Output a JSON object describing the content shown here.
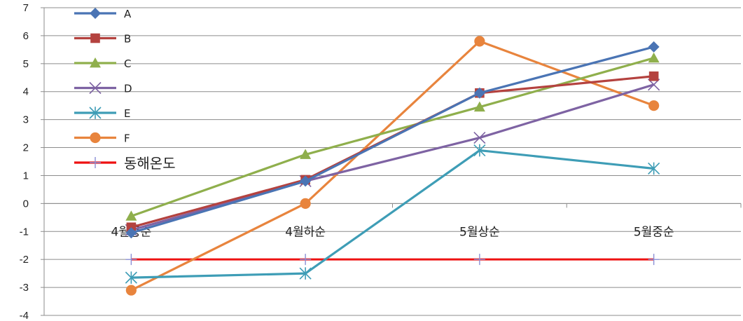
{
  "chart_data": {
    "type": "line",
    "categories": [
      "4월중순",
      "4월하순",
      "5월상순",
      "5월중순"
    ],
    "ylim": [
      -4,
      7
    ],
    "yticks": [
      -4,
      -3,
      -2,
      -1,
      0,
      1,
      2,
      3,
      4,
      5,
      6,
      7
    ],
    "grid": true,
    "legend_position": "top-left",
    "series": [
      {
        "name": "A",
        "values": [
          -1.05,
          0.8,
          3.95,
          5.6
        ],
        "color": "#4a74b4",
        "marker": "diamond"
      },
      {
        "name": "B",
        "values": [
          -0.85,
          0.85,
          3.95,
          4.55
        ],
        "color": "#b4423f",
        "marker": "square"
      },
      {
        "name": "C",
        "values": [
          -0.45,
          1.75,
          3.45,
          5.2
        ],
        "color": "#8faf4c",
        "marker": "triangle"
      },
      {
        "name": "D",
        "values": [
          -0.95,
          0.8,
          2.35,
          4.25
        ],
        "color": "#7e63a3",
        "marker": "x"
      },
      {
        "name": "E",
        "values": [
          -2.65,
          -2.5,
          1.9,
          1.25
        ],
        "color": "#3e9db6",
        "marker": "star"
      },
      {
        "name": "F",
        "values": [
          -3.1,
          0.0,
          5.8,
          3.5
        ],
        "color": "#e8843d",
        "marker": "circle"
      },
      {
        "name": "동해온도",
        "values": [
          -2.0,
          -2.0,
          -2.0,
          -2.0
        ],
        "color": "#ee1111",
        "marker": "plus",
        "marker_color": "#8a8fd6"
      }
    ]
  }
}
